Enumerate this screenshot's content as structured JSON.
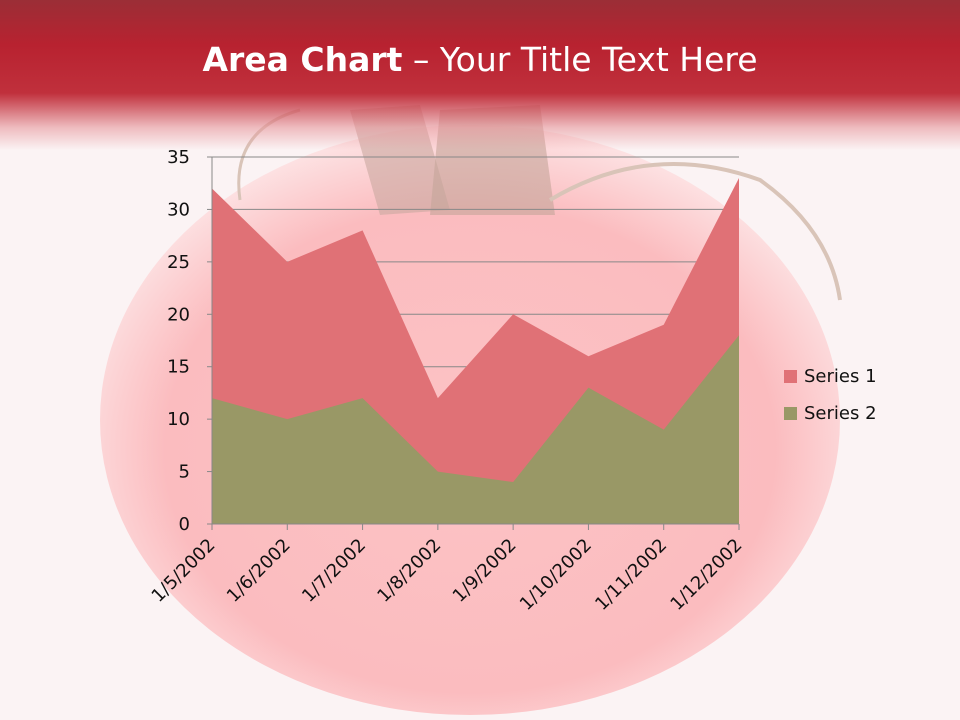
{
  "title": {
    "bold": "Area Chart",
    "rest": " – Your Title Text Here"
  },
  "colors": {
    "series1": "#e07176",
    "series2": "#999866",
    "title_bar": "#b82230"
  },
  "chart_data": {
    "type": "area",
    "categories": [
      "1/5/2002",
      "1/6/2002",
      "1/7/2002",
      "1/8/2002",
      "1/9/2002",
      "1/10/2002",
      "1/11/2002",
      "1/12/2002"
    ],
    "series": [
      {
        "name": "Series 1",
        "values": [
          32,
          25,
          28,
          12,
          20,
          16,
          19,
          33
        ]
      },
      {
        "name": "Series 2",
        "values": [
          12,
          10,
          12,
          5,
          4,
          13,
          9,
          18
        ]
      }
    ],
    "yticks": [
      "0",
      "5",
      "10",
      "15",
      "20",
      "25",
      "30",
      "35"
    ],
    "ylim": [
      0,
      35
    ],
    "grid": true,
    "legend": "right"
  }
}
